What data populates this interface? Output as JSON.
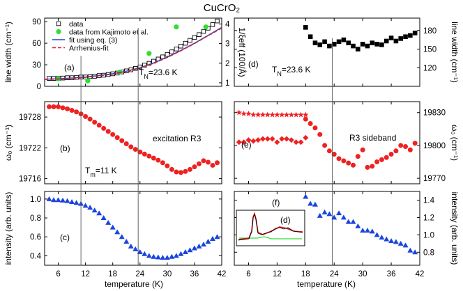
{
  "figure": {
    "title": "CuCrO₂",
    "x_axis_label": "temperature (K)"
  },
  "chart_data": [
    {
      "id": "a",
      "type": "scatter",
      "panel_label": "(a)",
      "xlim": [
        3,
        42
      ],
      "xticks": [
        6,
        12,
        18,
        24,
        30,
        36,
        42
      ],
      "ylabel": "line width (cm⁻¹)",
      "ylim": [
        0,
        95
      ],
      "yticks": [
        0,
        30,
        60,
        90
      ],
      "y2label": "1/ξ_eff (100/Å)",
      "y2lim": [
        0.82,
        4.3
      ],
      "y2ticks": [
        1,
        2,
        3,
        4
      ],
      "annotation": "T_N=23.6 K",
      "legend": [
        "data",
        "data from Kajimoto et al.",
        "fit using eq. (3)",
        "Arrhenius-fit"
      ],
      "series": [
        {
          "name": "data",
          "marker": "open-square",
          "axis": "left",
          "x": [
            4,
            5,
            6,
            7,
            8,
            9,
            10,
            11,
            12,
            13,
            14,
            15,
            16,
            17,
            18,
            19,
            20,
            21,
            22,
            23,
            24,
            25,
            26,
            27,
            28,
            29,
            30,
            31,
            32,
            33,
            34,
            35,
            36,
            37,
            38,
            39,
            40,
            41
          ],
          "y": [
            11,
            11,
            11,
            11.5,
            12,
            12,
            12.5,
            13,
            13,
            13.5,
            14,
            15,
            15.5,
            16.5,
            17.5,
            18.5,
            20,
            21.5,
            23,
            25,
            27,
            29.5,
            32,
            35,
            38,
            41,
            44.5,
            48,
            52,
            56,
            60,
            64,
            68,
            72,
            76.5,
            81,
            86,
            91
          ]
        },
        {
          "name": "data from Kajimoto et al.",
          "marker": "filled-circle",
          "axis": "right",
          "x": [
            6,
            12.5,
            19.5,
            26,
            32,
            38.5
          ],
          "y": [
            1.2,
            1.1,
            1.55,
            2.5,
            3.85,
            3.85
          ]
        },
        {
          "name": "fit using eq. (3)",
          "style": "solid-line",
          "axis": "left",
          "x": [
            3,
            6,
            9,
            12,
            15,
            18,
            21,
            24,
            27,
            30,
            33,
            36,
            39,
            42
          ],
          "y": [
            10,
            10.5,
            11.5,
            13,
            15,
            17.5,
            21,
            26,
            32.5,
            40.5,
            50,
            60,
            71,
            82
          ]
        },
        {
          "name": "Arrhenius-fit",
          "style": "dashed-line",
          "axis": "left",
          "x": [
            3,
            6,
            9,
            12,
            15,
            18,
            21,
            24,
            27,
            30,
            33,
            36,
            39,
            42
          ],
          "y": [
            9.5,
            10,
            11,
            12.5,
            14.5,
            17,
            20.5,
            25.5,
            32,
            40,
            49.5,
            59.5,
            70.5,
            81
          ]
        }
      ]
    },
    {
      "id": "b",
      "type": "scatter",
      "panel_label": "(b)",
      "xlim": [
        3,
        42
      ],
      "xticks": [
        6,
        12,
        18,
        24,
        30,
        36,
        42
      ],
      "ylabel": "ω₀ (cm⁻¹)",
      "ylim": [
        19715,
        19731
      ],
      "yticks": [
        19716,
        19722,
        19728
      ],
      "annotation": "T_m=11 K",
      "inner_label": "excitation R3",
      "series": [
        {
          "name": "ω₀",
          "marker": "filled-circle",
          "x": [
            4,
            5,
            6,
            7,
            8,
            9,
            10,
            11,
            12,
            13,
            14,
            15,
            16,
            17,
            18,
            19,
            20,
            21,
            22,
            23,
            24,
            25,
            26,
            27,
            28,
            29,
            30,
            31,
            32,
            33,
            34,
            35,
            36,
            37,
            38,
            39,
            40,
            41
          ],
          "y": [
            19730,
            19730,
            19730,
            19729.8,
            19729.6,
            19729.3,
            19729,
            19728.6,
            19728.1,
            19727.6,
            19727,
            19726.4,
            19725.8,
            19725.2,
            19724.6,
            19724,
            19723.4,
            19722.8,
            19722.2,
            19721.7,
            19721.2,
            19720.8,
            19720.4,
            19720,
            19719.6,
            19719.1,
            19718.5,
            19717.8,
            19717.3,
            19717.2,
            19717.4,
            19717.8,
            19718.3,
            19718.9,
            19719.5,
            19719.2,
            19718.6,
            19719.1
          ]
        }
      ]
    },
    {
      "id": "c",
      "type": "scatter",
      "panel_label": "(c)",
      "xlim": [
        3,
        42
      ],
      "xticks": [
        6,
        12,
        18,
        24,
        30,
        36,
        42
      ],
      "xticklabels": [
        "6",
        "12",
        "18",
        "24",
        "30",
        "36",
        "42"
      ],
      "ylabel": "intensity (arb. units)",
      "ylim": [
        0.3,
        1.08
      ],
      "yticks": [
        0.4,
        0.6,
        0.8,
        1.0
      ],
      "yticklabels": [
        "0.4",
        "0.6",
        "0.8",
        "1.0"
      ],
      "series": [
        {
          "name": "intensity",
          "marker": "filled-triangle",
          "x": [
            4,
            5,
            6,
            7,
            8,
            9,
            10,
            11,
            12,
            13,
            14,
            15,
            16,
            17,
            18,
            19,
            20,
            21,
            22,
            23,
            24,
            25,
            26,
            27,
            28,
            29,
            30,
            31,
            32,
            33,
            34,
            35,
            36,
            37,
            38,
            39,
            40,
            41
          ],
          "y": [
            1.0,
            0.99,
            0.99,
            0.985,
            0.98,
            0.97,
            0.96,
            0.95,
            0.93,
            0.91,
            0.88,
            0.85,
            0.8,
            0.75,
            0.7,
            0.65,
            0.6,
            0.55,
            0.5,
            0.47,
            0.44,
            0.42,
            0.4,
            0.39,
            0.385,
            0.38,
            0.38,
            0.39,
            0.4,
            0.42,
            0.44,
            0.46,
            0.48,
            0.5,
            0.52,
            0.55,
            0.58,
            0.6
          ]
        }
      ]
    },
    {
      "id": "d",
      "type": "scatter",
      "panel_label": "(d)",
      "xlim": [
        3,
        42
      ],
      "xticks": [
        6,
        12,
        18,
        24,
        30,
        36,
        42
      ],
      "ylabel": "line width (cm⁻¹)",
      "ylim": [
        90,
        200
      ],
      "yticks": [
        120,
        150,
        180
      ],
      "annotation": "T_N=23.6 K",
      "series": [
        {
          "name": "line width",
          "marker": "filled-square",
          "x": [
            18,
            19,
            20,
            21,
            22,
            23,
            24,
            25,
            26,
            27,
            28,
            29,
            30,
            31,
            32,
            33,
            34,
            35,
            36,
            37,
            38,
            39,
            40,
            41
          ],
          "y": [
            185,
            170,
            160,
            157,
            162,
            155,
            158,
            162,
            165,
            160,
            155,
            150,
            158,
            155,
            160,
            158,
            157,
            163,
            168,
            163,
            167,
            170,
            172,
            176
          ]
        }
      ]
    },
    {
      "id": "e",
      "type": "scatter",
      "panel_label": "(e)",
      "xlim": [
        3,
        42
      ],
      "xticks": [
        6,
        12,
        18,
        24,
        30,
        36,
        42
      ],
      "ylabel": "ω₀ (cm⁻¹)",
      "ylim": [
        19765,
        19840
      ],
      "yticks": [
        19770,
        19800,
        19830
      ],
      "inner_label": "R3 sideband",
      "series": [
        {
          "name": "stars",
          "marker": "filled-star",
          "x": [
            4,
            5,
            6,
            7,
            8,
            9,
            10,
            11,
            12,
            13,
            14,
            15,
            16,
            17,
            18
          ],
          "y": [
            19830,
            19829,
            19829,
            19828,
            19828,
            19828,
            19828,
            19828,
            19828,
            19828,
            19828,
            19828,
            19828,
            19828,
            19828
          ]
        },
        {
          "name": "diamonds",
          "marker": "filled-diamond",
          "x": [
            4,
            5,
            6,
            7,
            8,
            9,
            10,
            11,
            12,
            13,
            14,
            15,
            16,
            17,
            18
          ],
          "y": [
            19803,
            19803,
            19805,
            19804,
            19805,
            19806,
            19806,
            19806,
            19803,
            19806,
            19806,
            19805,
            19803,
            19803,
            19807
          ]
        },
        {
          "name": "circles",
          "marker": "filled-circle",
          "x": [
            18,
            19,
            20,
            21,
            22,
            23,
            24,
            25,
            26,
            27,
            28,
            29,
            30,
            31,
            32,
            33,
            34,
            35,
            36,
            37,
            38,
            39,
            40,
            41
          ],
          "y": [
            19824,
            19820,
            19816,
            19810,
            19800,
            19795,
            19792,
            19788,
            19786,
            19784,
            19782,
            19790,
            19796,
            19780,
            19781,
            19785,
            19787,
            19789,
            19792,
            19795,
            19800,
            19799,
            19796,
            19802
          ]
        }
      ]
    },
    {
      "id": "f",
      "type": "scatter",
      "panel_label": "(f)",
      "xlim": [
        3,
        42
      ],
      "xticks": [
        6,
        12,
        18,
        24,
        30,
        36,
        42
      ],
      "xticklabels": [
        "6",
        "12",
        "18",
        "24",
        "30",
        "36",
        "42"
      ],
      "ylabel": "intensity (arb. units)",
      "ylim": [
        0.65,
        1.5
      ],
      "yticks": [
        0.8,
        1.0,
        1.2,
        1.4
      ],
      "yticklabels": [
        "0.8",
        "1.0",
        "1.2",
        "1.4"
      ],
      "inset_label": "(d)",
      "series": [
        {
          "name": "intensity",
          "marker": "filled-triangle",
          "x": [
            18,
            19,
            20,
            21,
            22,
            23,
            24,
            25,
            26,
            27,
            28,
            29,
            30,
            31,
            32,
            33,
            34,
            35,
            36,
            37,
            38,
            39,
            40,
            41
          ],
          "y": [
            1.44,
            1.36,
            1.35,
            1.22,
            1.26,
            1.24,
            1.2,
            1.25,
            1.2,
            1.15,
            1.15,
            1.1,
            1.05,
            1.05,
            1.04,
            1.0,
            0.97,
            0.95,
            0.93,
            0.92,
            0.9,
            0.88,
            0.82,
            0.8
          ]
        }
      ]
    }
  ],
  "colors": {
    "data_black": "#000000",
    "kajimoto_green": "#33dd33",
    "fit_blue": "#2244cc",
    "arrhenius_red": "#dd2222",
    "marker_red": "#ee2222",
    "marker_blue": "#1a44dd",
    "guide_gray": "#555555"
  },
  "guide_lines_at_temperature": [
    11,
    23.6
  ]
}
